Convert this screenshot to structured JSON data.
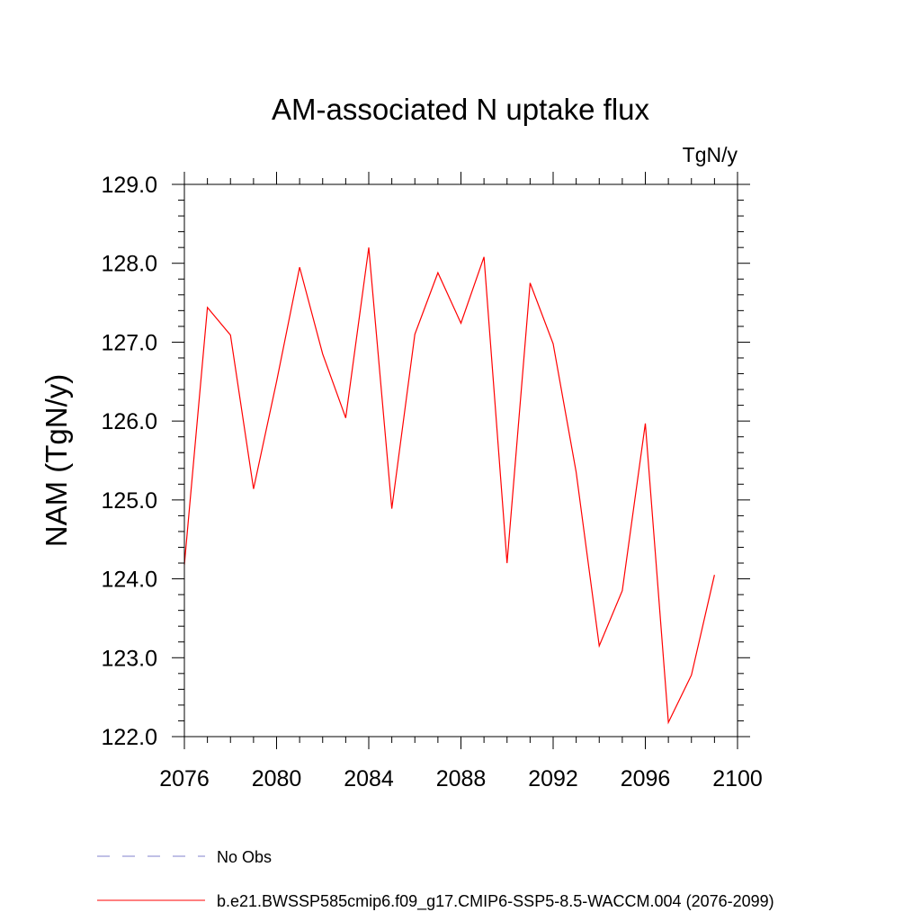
{
  "chart_data": {
    "type": "line",
    "title": "AM-associated N uptake flux",
    "units_label": "TgN/y",
    "ylabel": "NAM  (TgN/y)",
    "xlabel": "",
    "xlim": [
      2076,
      2100
    ],
    "ylim": [
      122.0,
      129.0
    ],
    "x_ticks": [
      2076,
      2080,
      2084,
      2088,
      2092,
      2096,
      2100
    ],
    "y_ticks": [
      122.0,
      123.0,
      124.0,
      125.0,
      126.0,
      127.0,
      128.0,
      129.0
    ],
    "x_tick_labels": [
      "2076",
      "2080",
      "2084",
      "2088",
      "2092",
      "2096",
      "2100"
    ],
    "y_tick_labels": [
      "122.0",
      "123.0",
      "124.0",
      "125.0",
      "126.0",
      "127.0",
      "128.0",
      "129.0"
    ],
    "grid": false,
    "legend_position": "bottom",
    "series": [
      {
        "name": "b.e21.BWSSP585cmip6.f09_g17.CMIP6-SSP5-8.5-WACCM.004 (2076-2099)",
        "color": "#ff0000",
        "dash": "solid",
        "x": [
          2076,
          2077,
          2078,
          2079,
          2080,
          2081,
          2082,
          2083,
          2084,
          2085,
          2086,
          2087,
          2088,
          2089,
          2090,
          2091,
          2092,
          2093,
          2094,
          2095,
          2096,
          2097,
          2098,
          2099
        ],
        "values": [
          124.18,
          127.44,
          127.09,
          125.14,
          126.5,
          127.95,
          126.85,
          126.04,
          128.2,
          124.89,
          127.1,
          127.88,
          127.24,
          128.08,
          124.2,
          127.75,
          126.98,
          125.35,
          123.15,
          123.85,
          125.97,
          122.18,
          122.78,
          124.05
        ]
      }
    ],
    "legend": [
      {
        "label": "No Obs",
        "color": "#8080cc",
        "dash": "dashed"
      },
      {
        "label": "b.e21.BWSSP585cmip6.f09_g17.CMIP6-SSP5-8.5-WACCM.004 (2076-2099)",
        "color": "#ff0000",
        "dash": "solid"
      }
    ]
  }
}
